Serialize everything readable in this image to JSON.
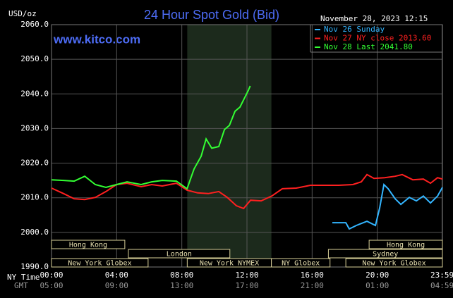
{
  "chart_data": {
    "type": "line",
    "title": "24 Hour Spot Gold (Bid)",
    "website": "www.kitco.com",
    "y_unit_label": "USD/oz",
    "timestamp": "November 28, 2023 12:15",
    "x_axis_label": "NY Time",
    "x2_axis_label": "GMT",
    "xlim": [
      0,
      24
    ],
    "xticks": [
      {
        "value": 0,
        "label": "00:00"
      },
      {
        "value": 4,
        "label": "04:00"
      },
      {
        "value": 8,
        "label": "08:00"
      },
      {
        "value": 12,
        "label": "12:00"
      },
      {
        "value": 16,
        "label": "16:00"
      },
      {
        "value": 20,
        "label": "20:00"
      },
      {
        "value": 23.983,
        "label": "23:59"
      }
    ],
    "gmt_ticks": [
      "05:00",
      "09:00",
      "13:00",
      "17:00",
      "21:00",
      "01:00",
      "04:59"
    ],
    "ylim": [
      1990,
      2060
    ],
    "yticks": [
      {
        "value": 1990,
        "label": "1990.0"
      },
      {
        "value": 2000,
        "label": "2000.0"
      },
      {
        "value": 2010,
        "label": "2010.0"
      },
      {
        "value": 2020,
        "label": "2020.0"
      },
      {
        "value": 2030,
        "label": "2030.0"
      },
      {
        "value": 2040,
        "label": "2040.0"
      },
      {
        "value": 2050,
        "label": "2050.0"
      },
      {
        "value": 2060,
        "label": "2060.0"
      }
    ],
    "grid": true,
    "shaded_range": [
      8.333,
      13.5
    ],
    "session_rows": [
      [
        {
          "name": "Hong Kong",
          "start": 0,
          "end": 4.5
        },
        {
          "name": "Hong Kong",
          "start": 19.5,
          "end": 24
        }
      ],
      [
        {
          "name": "London",
          "start": 4.72,
          "end": 10.95
        },
        {
          "name": "Sydney",
          "start": 17,
          "end": 24
        }
      ],
      [
        {
          "name": "New York Globex",
          "start": 0,
          "end": 5.93
        },
        {
          "name": "New York NYMEX",
          "start": 8.333,
          "end": 13.5
        },
        {
          "name": "NY Globex",
          "start": 13.5,
          "end": 17.1
        },
        {
          "name": "New York Globex",
          "start": 18.07,
          "end": 24
        }
      ]
    ],
    "series": [
      {
        "name": "Nov 26 Sunday",
        "color": "#33b5ff",
        "x": [
          17.24,
          18.07,
          18.28,
          18.72,
          19.37,
          19.89,
          20.15,
          20.41,
          20.67,
          21.1,
          21.45,
          21.97,
          22.4,
          22.83,
          23.27,
          23.7,
          24.0
        ],
        "values": [
          2002.8,
          2002.8,
          2001.0,
          2002.0,
          2003.2,
          2002.0,
          2007.1,
          2013.8,
          2012.6,
          2009.7,
          2008.1,
          2010.1,
          2009.1,
          2010.5,
          2008.5,
          2010.5,
          2013.0
        ]
      },
      {
        "name": "Nov 27 NY close 2013.60",
        "color": "#ff2020",
        "x": [
          0,
          0.74,
          1.39,
          2.04,
          2.69,
          3.34,
          3.99,
          4.64,
          5.5,
          6.15,
          6.8,
          7.67,
          8.32,
          8.97,
          9.62,
          10.27,
          10.79,
          11.35,
          11.79,
          12.22,
          12.87,
          13.52,
          14.17,
          15.03,
          15.9,
          16.77,
          17.63,
          18.5,
          19.02,
          19.37,
          19.8,
          20.45,
          21.1,
          21.53,
          22.18,
          22.83,
          23.27,
          23.7,
          24.0
        ],
        "values": [
          2012.8,
          2011.2,
          2009.7,
          2009.5,
          2010.1,
          2011.8,
          2013.8,
          2014.2,
          2013.2,
          2013.8,
          2013.4,
          2014.2,
          2012.2,
          2011.4,
          2011.2,
          2011.8,
          2010.1,
          2007.7,
          2006.9,
          2009.3,
          2009.1,
          2010.5,
          2012.6,
          2012.8,
          2013.6,
          2013.6,
          2013.6,
          2013.8,
          2014.6,
          2016.7,
          2015.6,
          2015.8,
          2016.2,
          2016.7,
          2015.2,
          2015.4,
          2014.2,
          2015.8,
          2015.4
        ]
      },
      {
        "name": "Nov 28 Last 2041.80",
        "color": "#33ff33",
        "x": [
          0,
          0.74,
          1.39,
          2.04,
          2.69,
          3.34,
          3.99,
          4.64,
          5.5,
          6.15,
          6.8,
          7.67,
          8.32,
          8.75,
          9.19,
          9.49,
          9.84,
          10.27,
          10.62,
          10.92,
          11.27,
          11.57,
          11.87,
          12.09,
          12.2
        ],
        "values": [
          2015.2,
          2015.0,
          2014.8,
          2016.2,
          2013.8,
          2013.0,
          2013.8,
          2014.6,
          2013.8,
          2014.6,
          2015.0,
          2014.8,
          2012.6,
          2018.3,
          2022.0,
          2027.0,
          2024.3,
          2024.8,
          2029.7,
          2030.9,
          2035.0,
          2036.2,
          2039.0,
          2041.1,
          2042.3
        ]
      }
    ]
  }
}
